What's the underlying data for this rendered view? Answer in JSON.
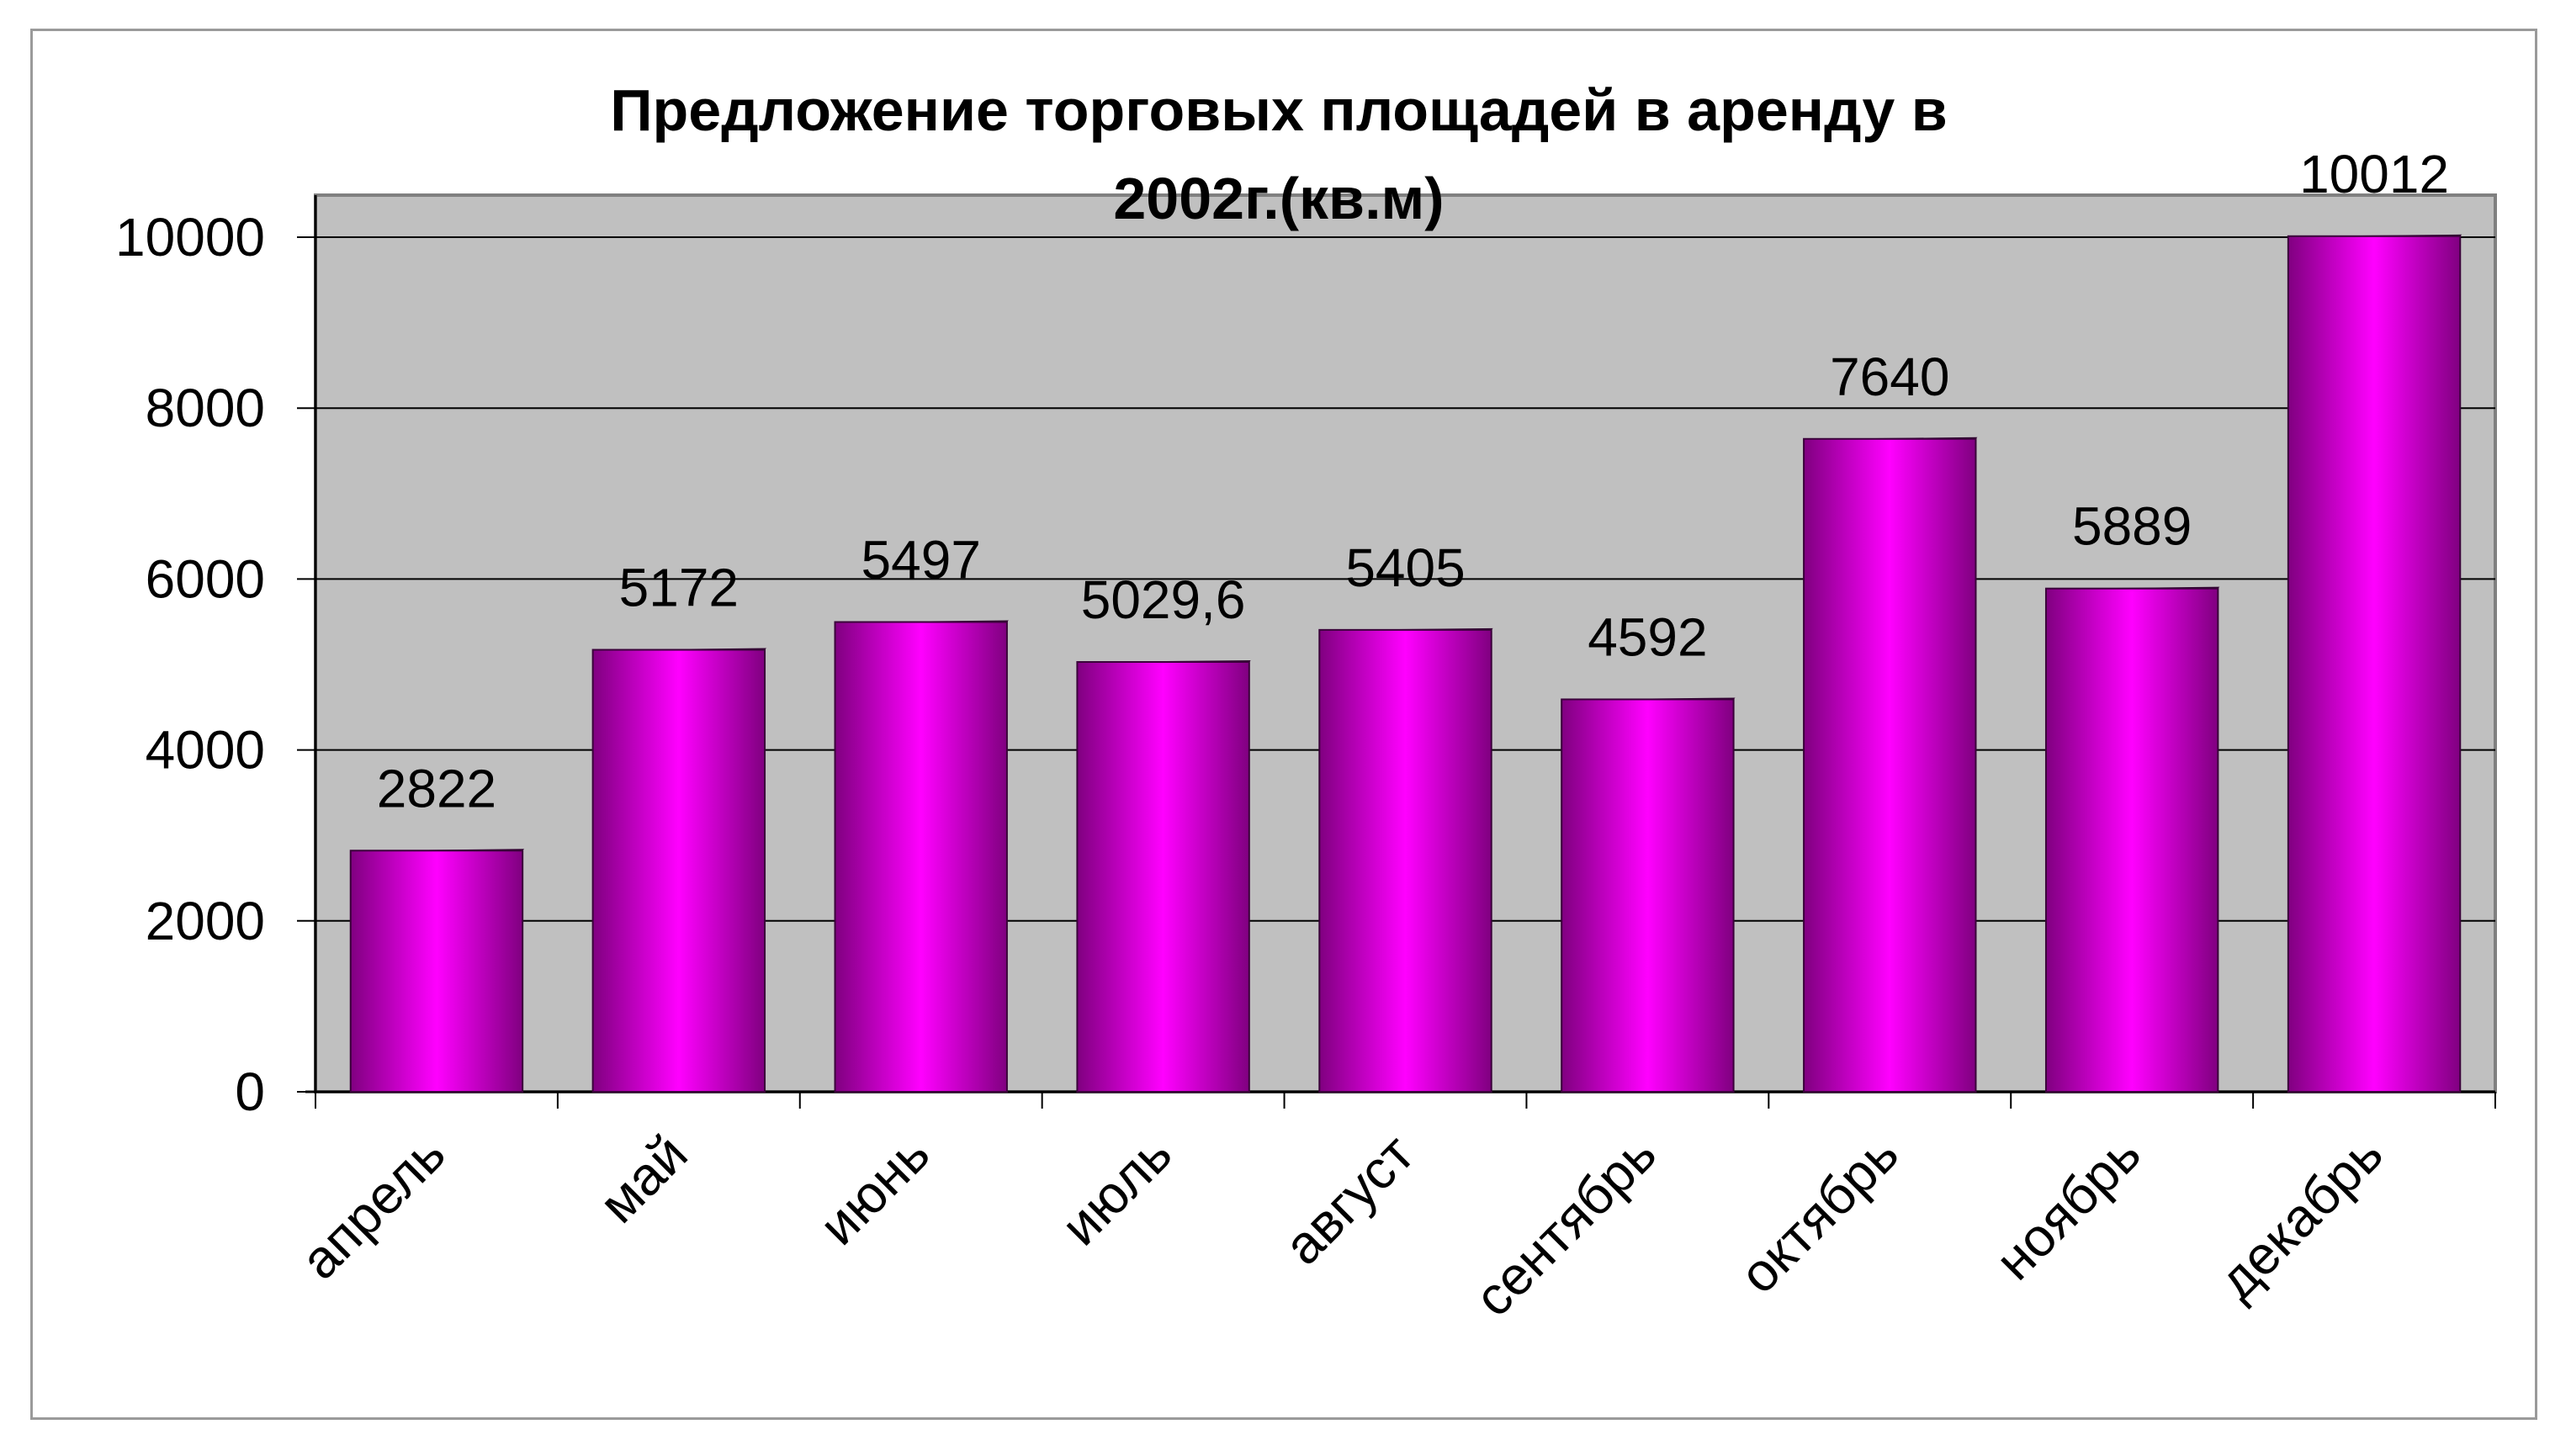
{
  "chart_data": {
    "type": "bar",
    "title_lines": [
      "Предложение торговых площадей в аренду в",
      "2002г.(кв.м)"
    ],
    "categories": [
      "апрель",
      "май",
      "июнь",
      "июль",
      "август",
      "сентябрь",
      "октябрь",
      "ноябрь",
      "декабрь"
    ],
    "values": [
      2822,
      5172,
      5497,
      5029.6,
      5405,
      4592,
      7640,
      5889,
      10012
    ],
    "value_labels": [
      "2822",
      "5172",
      "5497",
      "5029,6",
      "5405",
      "4592",
      "7640",
      "5889",
      "10012"
    ],
    "ylim": [
      0,
      10000
    ],
    "yticks": [
      0,
      2000,
      4000,
      6000,
      8000,
      10000
    ],
    "xlabel": "",
    "ylabel": "",
    "grid": true,
    "legend": "none",
    "colors": {
      "bar_edge": "#800080",
      "bar_center": "#ff00ff",
      "plot_background": "#c0c0c0",
      "gridline": "#000000"
    }
  }
}
